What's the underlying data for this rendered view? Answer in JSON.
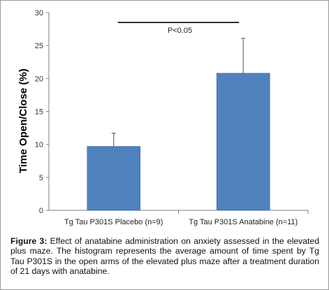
{
  "chart_data": {
    "type": "bar",
    "categories": [
      "Tg Tau P301S Placebo (n=9)",
      "Tg Tau P301S Anatabine (n=11)"
    ],
    "values": [
      9.7,
      20.8
    ],
    "error_bars": [
      2.0,
      5.3
    ],
    "ylabel": "Time Open/Close (%)",
    "ylim": [
      0,
      30
    ],
    "yticks": [
      "0",
      "5",
      "10",
      "15",
      "20",
      "25",
      "30"
    ],
    "annotation": "P<0.05",
    "bar_color": "#4f81bd",
    "grid": false
  },
  "caption": {
    "label": "Figure 3:",
    "text": "Effect of anatabine administration on anxiety assessed in the elevated plus maze. The histogram represents the average amount of time spent by Tg Tau P301S in the open arms of the elevated plus maze after a treatment duration of 21 days with anatabine."
  }
}
